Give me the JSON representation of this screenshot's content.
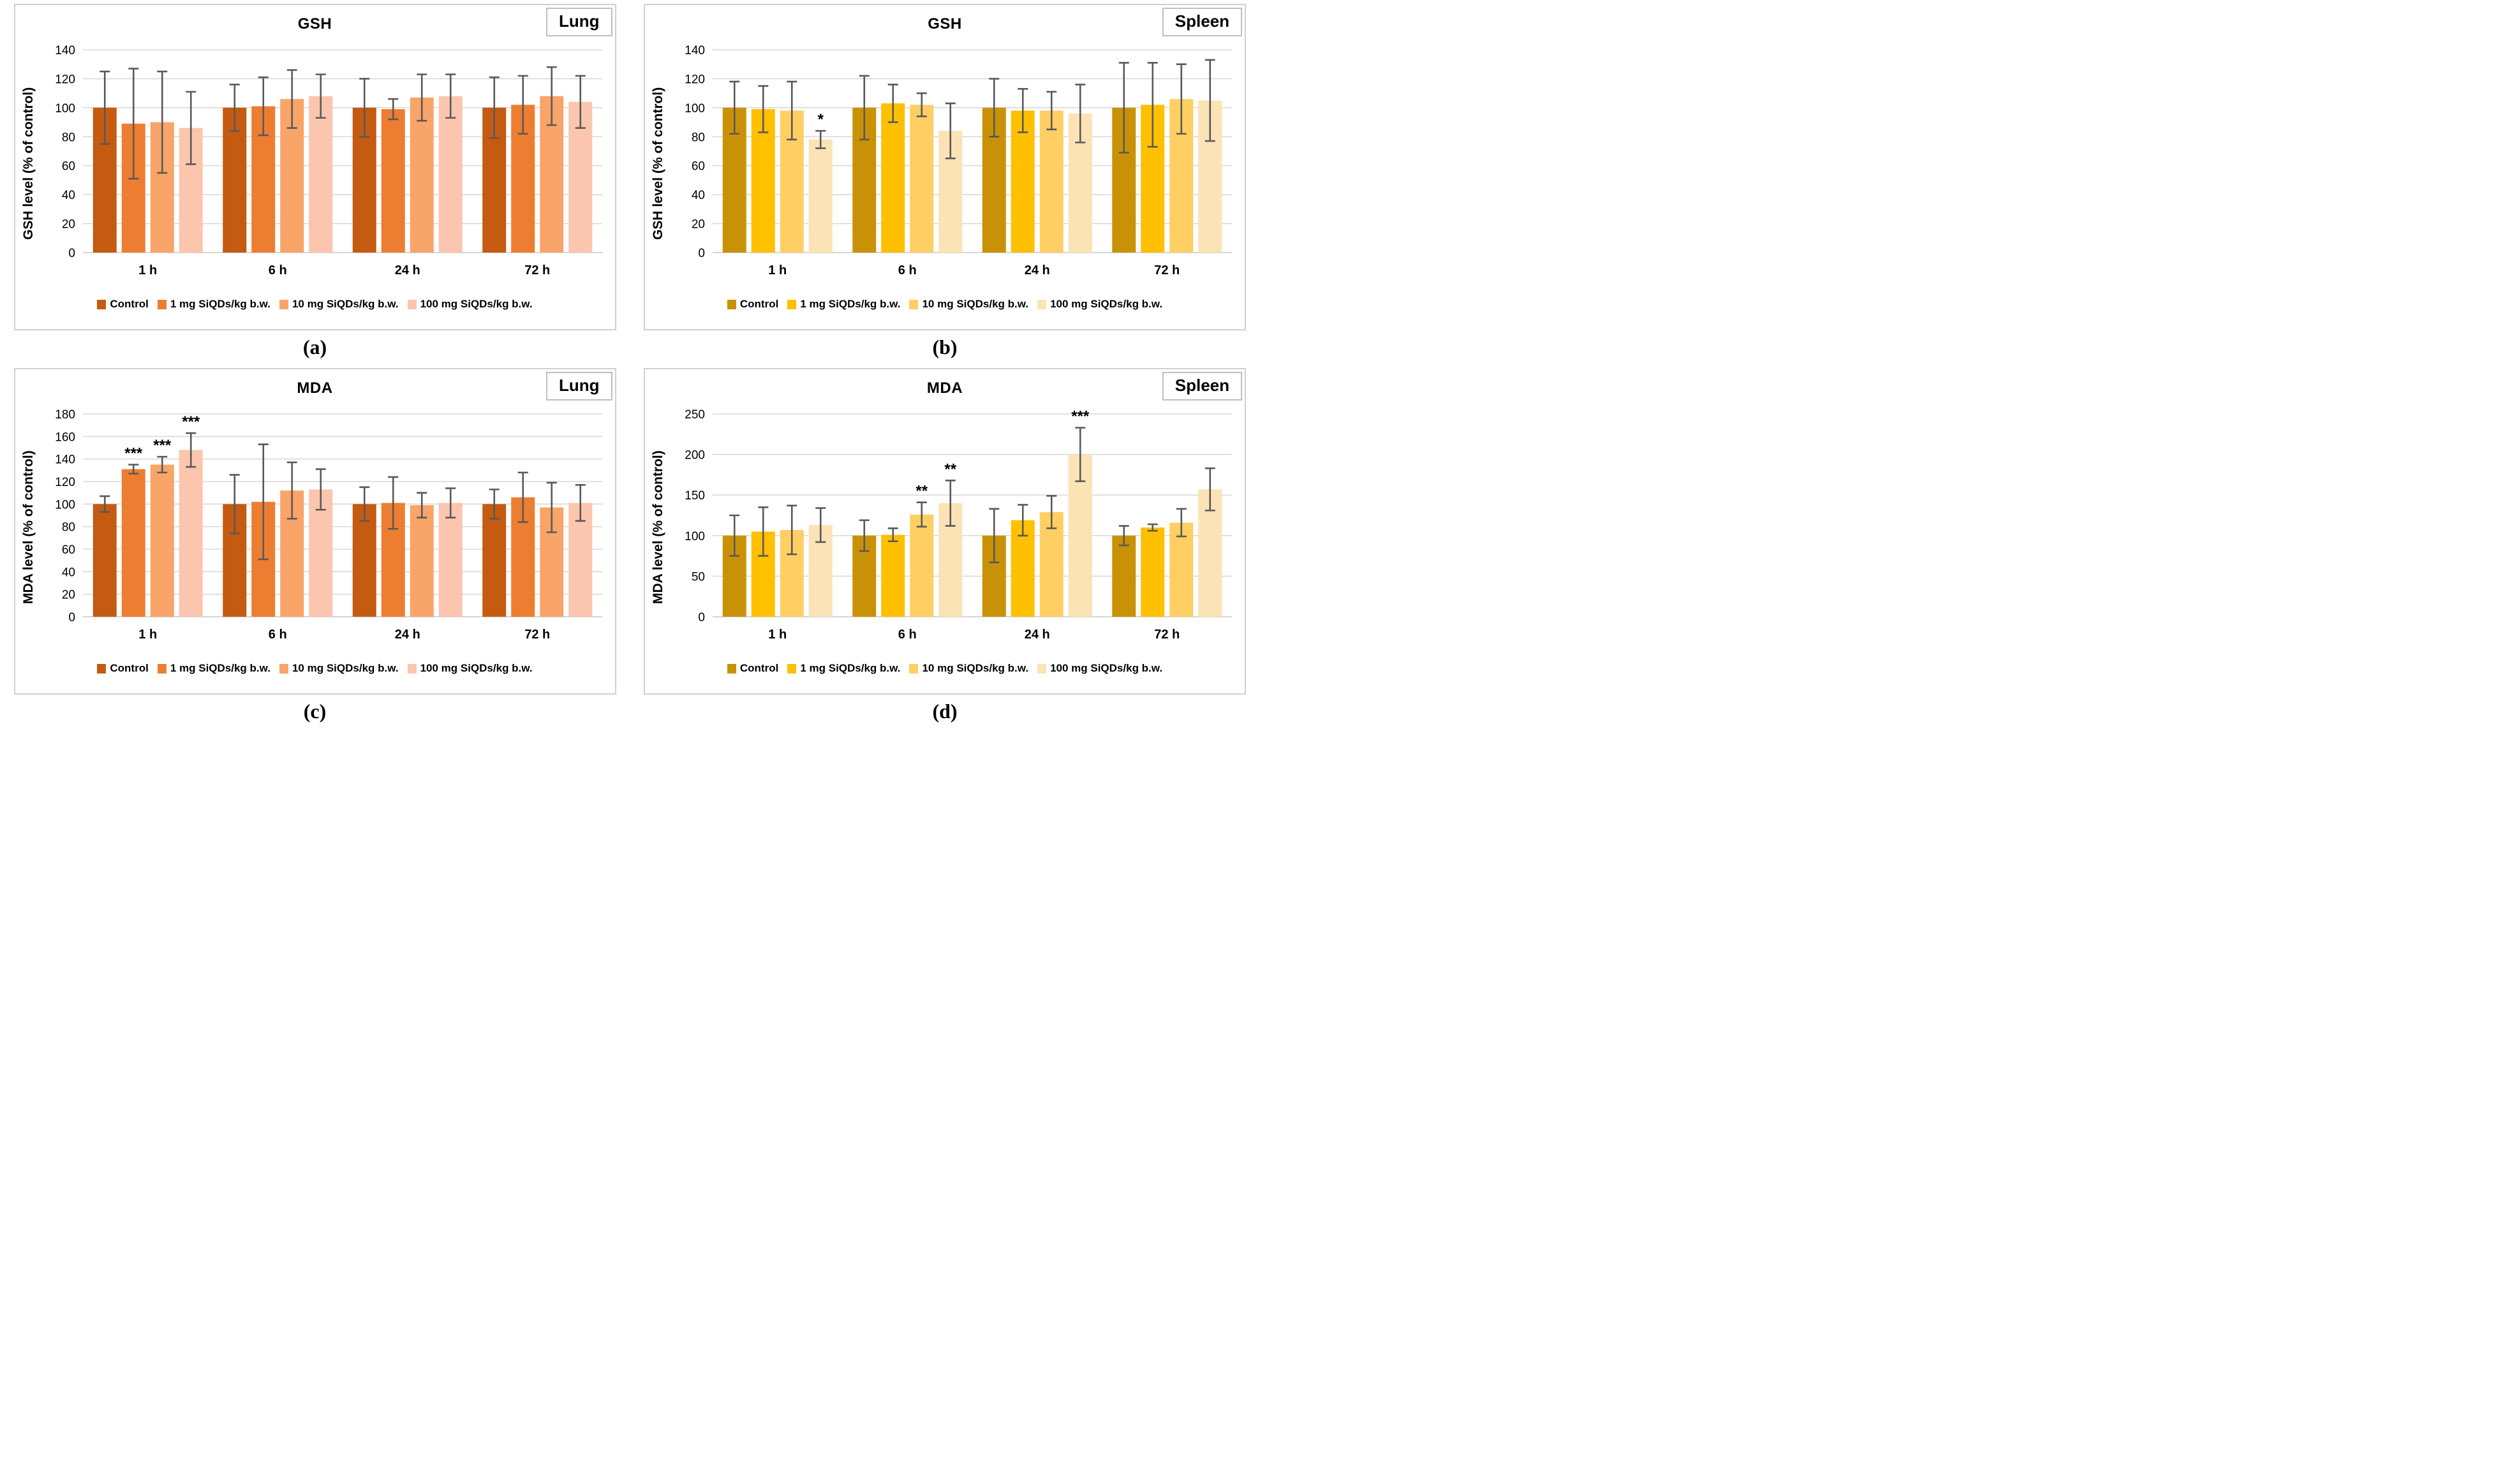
{
  "legend_labels": [
    "Control",
    "1 mg SiQDs/kg b.w.",
    "10 mg SiQDs/kg b.w.",
    "100 mg SiQDs/kg b.w."
  ],
  "chart_data": [
    {
      "type": "bar",
      "panel_label": "(a)",
      "title": "GSH",
      "tissue": "Lung",
      "ylabel": "GSH level (% of control)",
      "ylim": [
        0,
        140
      ],
      "ytick_step": 20,
      "grid": true,
      "legend_position": "bottom",
      "categories": [
        "1 h",
        "6 h",
        "24 h",
        "72 h"
      ],
      "palette": [
        "#C55A11",
        "#ED7D31",
        "#F9A468",
        "#FBC6AD"
      ],
      "series": [
        {
          "name": "Control",
          "values": [
            100,
            100,
            100,
            100
          ],
          "errors": [
            25,
            16,
            20,
            21
          ]
        },
        {
          "name": "1 mg SiQDs/kg b.w.",
          "values": [
            89,
            101,
            99,
            102
          ],
          "errors": [
            38,
            20,
            7,
            20
          ]
        },
        {
          "name": "10 mg SiQDs/kg b.w.",
          "values": [
            90,
            106,
            107,
            108
          ],
          "errors": [
            35,
            20,
            16,
            20
          ]
        },
        {
          "name": "100 mg SiQDs/kg b.w.",
          "values": [
            86,
            108,
            108,
            104
          ],
          "errors": [
            25,
            15,
            15,
            18
          ]
        }
      ],
      "significance": []
    },
    {
      "type": "bar",
      "panel_label": "(b)",
      "title": "GSH",
      "tissue": "Spleen",
      "ylabel": "GSH level (% of control)",
      "ylim": [
        0,
        140
      ],
      "ytick_step": 20,
      "grid": true,
      "legend_position": "bottom",
      "categories": [
        "1 h",
        "6 h",
        "24 h",
        "72 h"
      ],
      "palette": [
        "#C99206",
        "#FFC000",
        "#FFCF64",
        "#FCE3B6"
      ],
      "series": [
        {
          "name": "Control",
          "values": [
            100,
            100,
            100,
            100
          ],
          "errors": [
            18,
            22,
            20,
            31
          ]
        },
        {
          "name": "1 mg SiQDs/kg b.w.",
          "values": [
            99,
            103,
            98,
            102
          ],
          "errors": [
            16,
            13,
            15,
            29
          ]
        },
        {
          "name": "10 mg SiQDs/kg b.w.",
          "values": [
            98,
            102,
            98,
            106
          ],
          "errors": [
            20,
            8,
            13,
            24
          ]
        },
        {
          "name": "100 mg SiQDs/kg b.w.",
          "values": [
            78,
            84,
            96,
            105
          ],
          "errors": [
            6,
            19,
            20,
            28
          ]
        }
      ],
      "significance": [
        {
          "category": 0,
          "series": 3,
          "label": "*"
        }
      ]
    },
    {
      "type": "bar",
      "panel_label": "(c)",
      "title": "MDA",
      "tissue": "Lung",
      "ylabel": "MDA level (% of control)",
      "ylim": [
        0,
        180
      ],
      "ytick_step": 20,
      "grid": true,
      "legend_position": "bottom",
      "categories": [
        "1 h",
        "6 h",
        "24 h",
        "72 h"
      ],
      "palette": [
        "#C55A11",
        "#ED7D31",
        "#F9A468",
        "#FBC6AD"
      ],
      "series": [
        {
          "name": "Control",
          "values": [
            100,
            100,
            100,
            100
          ],
          "errors": [
            7,
            26,
            15,
            13
          ]
        },
        {
          "name": "1 mg SiQDs/kg b.w.",
          "values": [
            131,
            102,
            101,
            106
          ],
          "errors": [
            4,
            51,
            23,
            22
          ]
        },
        {
          "name": "10 mg SiQDs/kg b.w.",
          "values": [
            135,
            112,
            99,
            97
          ],
          "errors": [
            7,
            25,
            11,
            22
          ]
        },
        {
          "name": "100 mg SiQDs/kg b.w.",
          "values": [
            148,
            113,
            101,
            101
          ],
          "errors": [
            15,
            18,
            13,
            16
          ]
        }
      ],
      "significance": [
        {
          "category": 0,
          "series": 1,
          "label": "***"
        },
        {
          "category": 0,
          "series": 2,
          "label": "***"
        },
        {
          "category": 0,
          "series": 3,
          "label": "***"
        }
      ]
    },
    {
      "type": "bar",
      "panel_label": "(d)",
      "title": "MDA",
      "tissue": "Spleen",
      "ylabel": "MDA level (% of control)",
      "ylim": [
        0,
        250
      ],
      "ytick_step": 50,
      "grid": true,
      "legend_position": "bottom",
      "categories": [
        "1 h",
        "6 h",
        "24 h",
        "72 h"
      ],
      "palette": [
        "#C99206",
        "#FFC000",
        "#FFCF64",
        "#FCE3B6"
      ],
      "series": [
        {
          "name": "Control",
          "values": [
            100,
            100,
            100,
            100
          ],
          "errors": [
            25,
            19,
            33,
            12
          ]
        },
        {
          "name": "1 mg SiQDs/kg b.w.",
          "values": [
            105,
            101,
            119,
            110
          ],
          "errors": [
            30,
            8,
            19,
            4
          ]
        },
        {
          "name": "10 mg SiQDs/kg b.w.",
          "values": [
            107,
            126,
            129,
            116
          ],
          "errors": [
            30,
            15,
            20,
            17
          ]
        },
        {
          "name": "100 mg SiQDs/kg b.w.",
          "values": [
            113,
            140,
            200,
            157
          ],
          "errors": [
            21,
            28,
            33,
            26
          ]
        }
      ],
      "significance": [
        {
          "category": 1,
          "series": 2,
          "label": "**"
        },
        {
          "category": 1,
          "series": 3,
          "label": "**"
        },
        {
          "category": 2,
          "series": 3,
          "label": "***"
        }
      ]
    }
  ],
  "style": {
    "error_bar_color": "#595959",
    "gridline_color": "#D9D9D9",
    "baseline_color": "#C9C9C9"
  }
}
